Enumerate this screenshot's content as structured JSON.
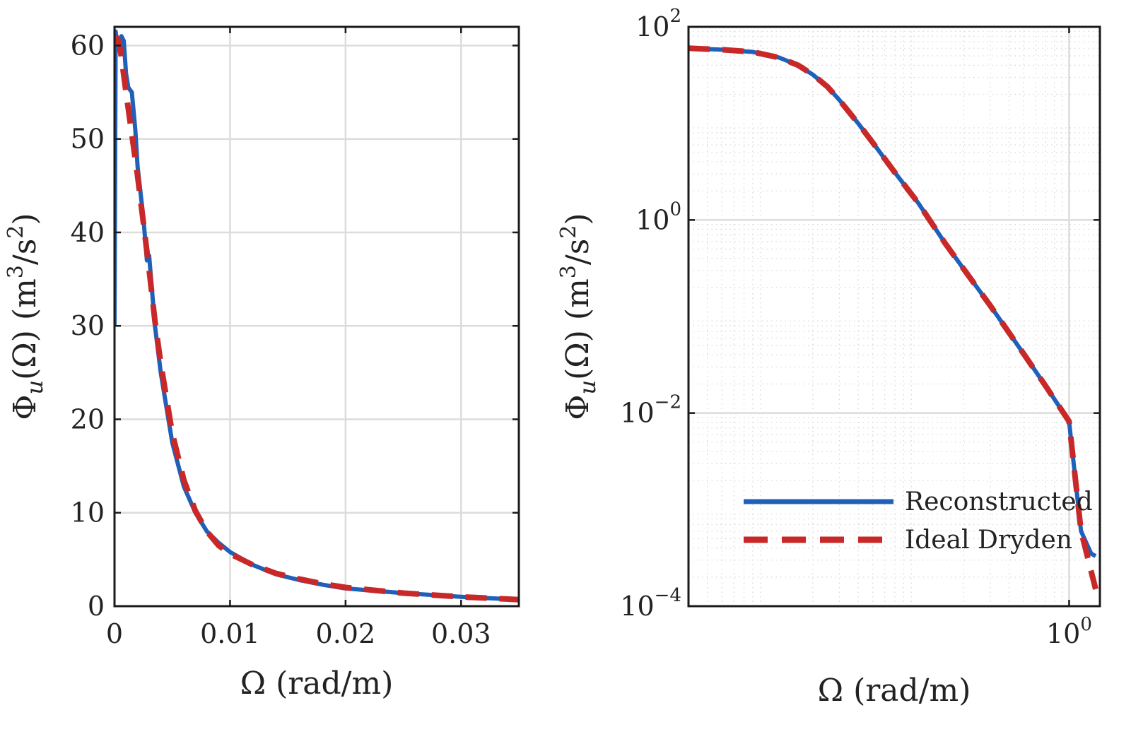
{
  "chart_data": [
    {
      "type": "line",
      "x_scale": "linear",
      "y_scale": "linear",
      "xlim": [
        0,
        0.035
      ],
      "ylim": [
        0,
        62
      ],
      "xticks": [
        0,
        0.01,
        0.02,
        0.03
      ],
      "xtick_labels": [
        "0",
        "0.01",
        "0.02",
        "0.03"
      ],
      "yticks": [
        0,
        10,
        20,
        30,
        40,
        50,
        60
      ],
      "ytick_labels": [
        "0",
        "10",
        "20",
        "30",
        "40",
        "50",
        "60"
      ],
      "xlabel": "Ω (rad/m)",
      "ylabel": {
        "base": "Φ",
        "sub": "u",
        "rest": "(Ω)  (m",
        "sup1": "3",
        "mid": "/s",
        "sup2": "2",
        "close": ")"
      },
      "grid": true,
      "series": [
        {
          "name": "Reconstructed",
          "color": "#2060b8",
          "style": "solid",
          "x": [
            0,
            0.0001,
            0.0002,
            0.0004,
            0.0006,
            0.0008,
            0.001,
            0.0012,
            0.0015,
            0.0018,
            0.002,
            0.0025,
            0.0028,
            0.003,
            0.0035,
            0.004,
            0.005,
            0.006,
            0.007,
            0.008,
            0.009,
            0.01,
            0.012,
            0.014,
            0.016,
            0.018,
            0.02,
            0.025,
            0.03,
            0.035
          ],
          "y": [
            30,
            61.5,
            60.5,
            60.0,
            61.0,
            60.5,
            57.0,
            55.5,
            55.0,
            51.0,
            47.0,
            41.5,
            37.0,
            37.5,
            30.0,
            25.0,
            17.5,
            12.8,
            10.0,
            8.0,
            6.8,
            5.8,
            4.4,
            3.4,
            2.8,
            2.3,
            1.9,
            1.4,
            1.0,
            0.7
          ]
        },
        {
          "name": "Ideal Dryden",
          "color": "#c82828",
          "style": "dashed",
          "x": [
            0.0001,
            0.0003,
            0.0005,
            0.001,
            0.0015,
            0.002,
            0.0025,
            0.003,
            0.0035,
            0.004,
            0.005,
            0.006,
            0.007,
            0.008,
            0.009,
            0.01,
            0.012,
            0.014,
            0.016,
            0.018,
            0.02,
            0.025,
            0.03,
            0.035
          ],
          "y": [
            61.0,
            60.6,
            59.6,
            55.0,
            50.5,
            46.0,
            41.0,
            36.0,
            30.5,
            26.0,
            18.5,
            13.5,
            10.2,
            8.0,
            6.5,
            5.6,
            4.4,
            3.5,
            2.9,
            2.4,
            2.0,
            1.4,
            1.0,
            0.7
          ]
        }
      ]
    },
    {
      "type": "line",
      "x_scale": "log",
      "y_scale": "log",
      "xlim": [
        0.003,
        1.6
      ],
      "ylim": [
        0.0001,
        100
      ],
      "xticks": [
        1
      ],
      "xtick_labels": [
        {
          "base": "10",
          "exp": "0"
        }
      ],
      "yticks": [
        0.0001,
        0.01,
        1,
        100
      ],
      "ytick_labels": [
        {
          "base": "10",
          "exp": "−4"
        },
        {
          "base": "10",
          "exp": "−2"
        },
        {
          "base": "10",
          "exp": "0"
        },
        {
          "base": "10",
          "exp": "2"
        }
      ],
      "xlabel": "Ω (rad/m)",
      "ylabel": {
        "base": "Φ",
        "sub": "u",
        "rest": "(Ω)  (m",
        "sup1": "3",
        "mid": "/s",
        "sup2": "2",
        "close": ")"
      },
      "grid": true,
      "minor_grid": true,
      "legend": {
        "position": "bottom-right",
        "entries": [
          "Reconstructed",
          "Ideal Dryden"
        ]
      },
      "series": [
        {
          "name": "Reconstructed",
          "color": "#2060b8",
          "style": "solid",
          "x": [
            0.003,
            0.005,
            0.008,
            0.012,
            0.016,
            0.02,
            0.025,
            0.03,
            0.04,
            0.05,
            0.07,
            0.1,
            0.15,
            0.2,
            0.3,
            0.5,
            0.7,
            1.0,
            1.2,
            1.4,
            1.5
          ],
          "y": [
            60,
            58,
            55,
            48,
            40,
            32,
            24,
            17.5,
            10,
            6.3,
            3.1,
            1.5,
            0.58,
            0.31,
            0.13,
            0.041,
            0.019,
            0.0082,
            0.0006,
            0.00035,
            0.00033
          ]
        },
        {
          "name": "Ideal Dryden",
          "color": "#c82828",
          "style": "dashed",
          "x": [
            0.003,
            0.005,
            0.008,
            0.012,
            0.016,
            0.02,
            0.025,
            0.03,
            0.04,
            0.05,
            0.07,
            0.1,
            0.15,
            0.2,
            0.3,
            0.5,
            0.7,
            1.0,
            1.2,
            1.5
          ],
          "y": [
            60,
            58,
            55,
            48,
            40,
            32,
            24,
            17.5,
            10,
            6.3,
            3.1,
            1.5,
            0.58,
            0.31,
            0.13,
            0.041,
            0.019,
            0.0082,
            0.0006,
            0.00015
          ]
        }
      ]
    }
  ]
}
